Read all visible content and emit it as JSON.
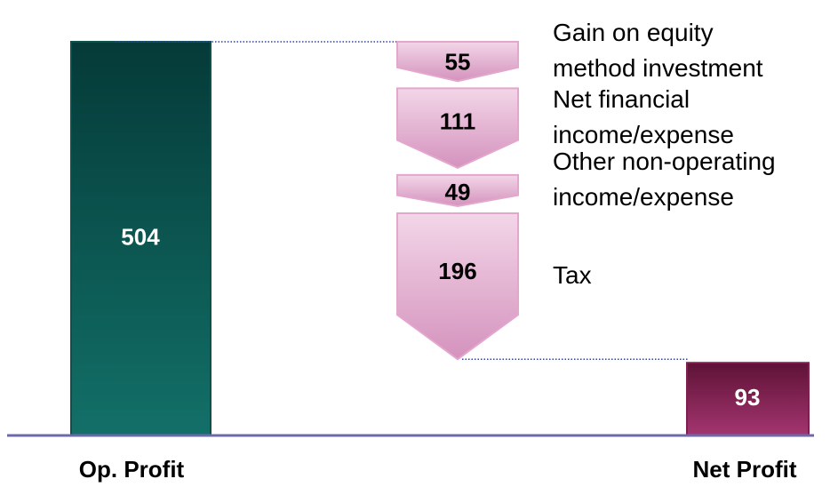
{
  "chart_data": {
    "type": "waterfall",
    "start": {
      "label": "Op. Profit",
      "value": 504,
      "color": "#0b524e"
    },
    "steps": [
      {
        "label": "Gain on equity\nmethod investment",
        "value": 55
      },
      {
        "label": "Net financial\nincome/expense",
        "value": 111
      },
      {
        "label": "Other non-operating\nincome/expense",
        "value": 49
      },
      {
        "label": "Tax",
        "value": 196
      }
    ],
    "step_color": "#e3a6cc",
    "end": {
      "label": "Net Profit",
      "value": 93,
      "color": "#7e1f4f"
    }
  }
}
